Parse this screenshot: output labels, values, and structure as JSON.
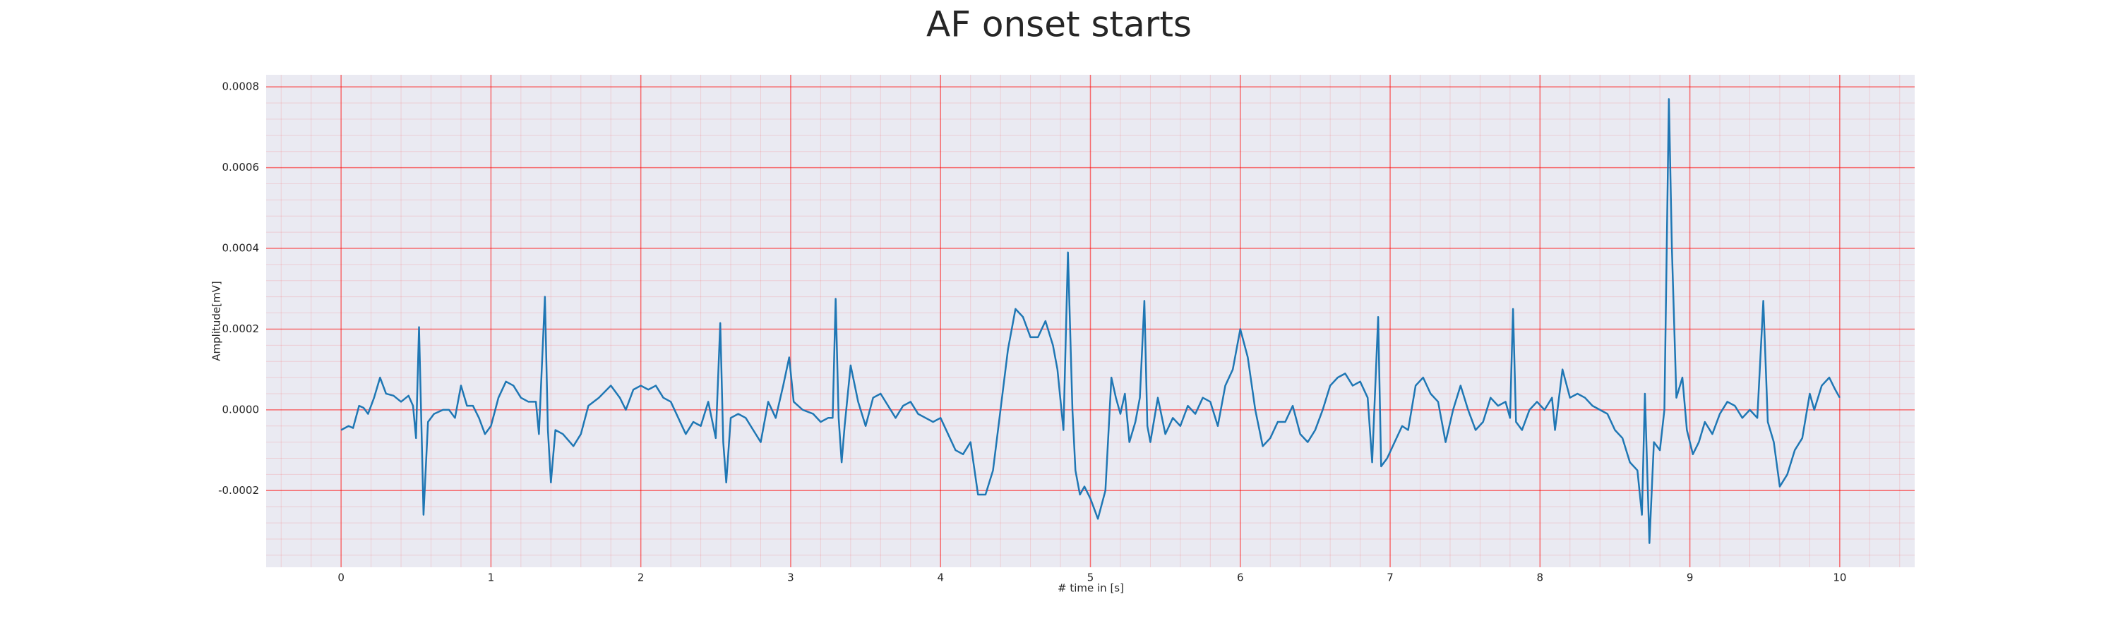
{
  "chart_data": {
    "type": "line",
    "title": "AF onset starts",
    "xlabel": "# time in [s]",
    "ylabel": "Amplitude[mV]",
    "xlim": [
      -0.5,
      10.5
    ],
    "ylim": [
      -0.00039,
      0.00083
    ],
    "xticks": [
      0,
      1,
      2,
      3,
      4,
      5,
      6,
      7,
      8,
      9,
      10
    ],
    "yticks": [
      -0.0002,
      {
        "value": 0,
        "label": "0.0000"
      },
      0.0002,
      0.0004,
      0.0006,
      0.0008
    ],
    "grid": true,
    "minor_grid": true,
    "grid_color": "#ff0000",
    "background": "#eaeaf2",
    "series": [
      {
        "color": "#1f77b4",
        "x": [
          0,
          0.05,
          0.08,
          0.12,
          0.15,
          0.18,
          0.22,
          0.26,
          0.3,
          0.35,
          0.4,
          0.45,
          0.48,
          0.5,
          0.52,
          0.54,
          0.55,
          0.58,
          0.62,
          0.68,
          0.72,
          0.76,
          0.8,
          0.84,
          0.88,
          0.92,
          0.96,
          1.0,
          1.05,
          1.1,
          1.15,
          1.2,
          1.25,
          1.3,
          1.32,
          1.36,
          1.38,
          1.4,
          1.43,
          1.48,
          1.55,
          1.6,
          1.65,
          1.72,
          1.8,
          1.86,
          1.9,
          1.95,
          2.0,
          2.05,
          2.1,
          2.15,
          2.2,
          2.25,
          2.3,
          2.35,
          2.4,
          2.45,
          2.5,
          2.53,
          2.55,
          2.57,
          2.6,
          2.65,
          2.7,
          2.75,
          2.8,
          2.85,
          2.9,
          2.95,
          2.99,
          3.02,
          3.08,
          3.15,
          3.2,
          3.25,
          3.28,
          3.3,
          3.32,
          3.34,
          3.36,
          3.4,
          3.45,
          3.5,
          3.55,
          3.6,
          3.65,
          3.7,
          3.75,
          3.8,
          3.85,
          3.9,
          3.95,
          4.0,
          4.05,
          4.1,
          4.15,
          4.2,
          4.25,
          4.3,
          4.35,
          4.4,
          4.45,
          4.5,
          4.55,
          4.6,
          4.65,
          4.7,
          4.75,
          4.78,
          4.82,
          4.85,
          4.88,
          4.9,
          4.93,
          4.96,
          5.0,
          5.05,
          5.1,
          5.14,
          5.17,
          5.2,
          5.23,
          5.26,
          5.3,
          5.33,
          5.36,
          5.38,
          5.4,
          5.45,
          5.5,
          5.55,
          5.6,
          5.65,
          5.7,
          5.75,
          5.8,
          5.85,
          5.9,
          5.95,
          6.0,
          6.05,
          6.1,
          6.15,
          6.2,
          6.25,
          6.3,
          6.35,
          6.4,
          6.45,
          6.5,
          6.55,
          6.6,
          6.65,
          6.7,
          6.75,
          6.8,
          6.85,
          6.88,
          6.92,
          6.94,
          6.98,
          7.03,
          7.08,
          7.12,
          7.17,
          7.22,
          7.27,
          7.32,
          7.37,
          7.42,
          7.47,
          7.52,
          7.57,
          7.62,
          7.67,
          7.72,
          7.77,
          7.8,
          7.82,
          7.84,
          7.88,
          7.93,
          7.98,
          8.03,
          8.08,
          8.1,
          8.15,
          8.2,
          8.25,
          8.3,
          8.35,
          8.4,
          8.45,
          8.5,
          8.55,
          8.6,
          8.65,
          8.68,
          8.7,
          8.73,
          8.76,
          8.8,
          8.83,
          8.86,
          8.88,
          8.91,
          8.95,
          8.98,
          9.02,
          9.06,
          9.1,
          9.15,
          9.2,
          9.25,
          9.3,
          9.35,
          9.4,
          9.45,
          9.49,
          9.52,
          9.56,
          9.6,
          9.65,
          9.7,
          9.75,
          9.8,
          9.83,
          9.88,
          9.93,
          9.97,
          10.0
        ],
        "values": [
          -5e-05,
          -4e-05,
          -4.5e-05,
          1e-05,
          5e-06,
          -1e-05,
          3e-05,
          8e-05,
          4e-05,
          3.5e-05,
          2e-05,
          3.5e-05,
          1e-05,
          -7e-05,
          0.000205,
          -0.0001,
          -0.00026,
          -3e-05,
          -1e-05,
          0,
          0,
          -2e-05,
          6e-05,
          1e-05,
          1e-05,
          -2e-05,
          -6e-05,
          -4e-05,
          3e-05,
          7e-05,
          6e-05,
          3e-05,
          2e-05,
          2e-05,
          -6e-05,
          0.00028,
          -5e-05,
          -0.00018,
          -5e-05,
          -6e-05,
          -9e-05,
          -6e-05,
          1e-05,
          3e-05,
          6e-05,
          3e-05,
          0,
          5e-05,
          6e-05,
          5e-05,
          6e-05,
          3e-05,
          2e-05,
          -2e-05,
          -6e-05,
          -3e-05,
          -4e-05,
          2e-05,
          -7e-05,
          0.000215,
          -8e-05,
          -0.00018,
          -2e-05,
          -1e-05,
          -2e-05,
          -5e-05,
          -8e-05,
          2e-05,
          -2e-05,
          6e-05,
          0.00013,
          2e-05,
          0,
          -1e-05,
          -3e-05,
          -2e-05,
          -2e-05,
          0.000275,
          -2e-05,
          -0.00013,
          -4e-05,
          0.00011,
          2e-05,
          -4e-05,
          3e-05,
          4e-05,
          1e-05,
          -2e-05,
          1e-05,
          2e-05,
          -1e-05,
          -2e-05,
          -3e-05,
          -2e-05,
          -6e-05,
          -0.0001,
          -0.00011,
          -8e-05,
          -0.00021,
          -0.00021,
          -0.00015,
          0,
          0.00015,
          0.00025,
          0.00023,
          0.00018,
          0.00018,
          0.00022,
          0.00016,
          0.0001,
          -5e-05,
          0.00039,
          0,
          -0.00015,
          -0.00021,
          -0.00019,
          -0.00022,
          -0.00027,
          -0.0002,
          8e-05,
          3e-05,
          -1e-05,
          4e-05,
          -8e-05,
          -3e-05,
          3e-05,
          0.00027,
          -4e-05,
          -8e-05,
          3e-05,
          -6e-05,
          -2e-05,
          -4e-05,
          1e-05,
          -1e-05,
          3e-05,
          2e-05,
          -4e-05,
          6e-05,
          0.0001,
          0.0002,
          0.00013,
          0,
          -9e-05,
          -7e-05,
          -3e-05,
          -3e-05,
          1e-05,
          -6e-05,
          -8e-05,
          -5e-05,
          0,
          6e-05,
          8e-05,
          9e-05,
          6e-05,
          7e-05,
          3e-05,
          -0.00013,
          0.00023,
          -0.00014,
          -0.00012,
          -8e-05,
          -4e-05,
          -5e-05,
          6e-05,
          8e-05,
          4e-05,
          2e-05,
          -8e-05,
          0,
          6e-05,
          0,
          -5e-05,
          -3e-05,
          3e-05,
          1e-05,
          2e-05,
          -2e-05,
          0.00025,
          -3e-05,
          -5e-05,
          0,
          2e-05,
          0,
          3e-05,
          -5e-05,
          0.0001,
          3e-05,
          4e-05,
          3e-05,
          1e-05,
          0,
          -1e-05,
          -5e-05,
          -7e-05,
          -0.00013,
          -0.00015,
          -0.00026,
          4e-05,
          -0.00033,
          -8e-05,
          -0.0001,
          0,
          0.00077,
          0.0004,
          3e-05,
          8e-05,
          -5e-05,
          -0.00011,
          -8e-05,
          -3e-05,
          -6e-05,
          -1e-05,
          2e-05,
          1e-05,
          -2e-05,
          0,
          -2e-05,
          0.00027,
          -3e-05,
          -8e-05,
          -0.00019,
          -0.00016,
          -0.0001,
          -7e-05,
          4e-05,
          0,
          6e-05,
          8e-05,
          5e-05,
          3e-05
        ]
      }
    ]
  }
}
